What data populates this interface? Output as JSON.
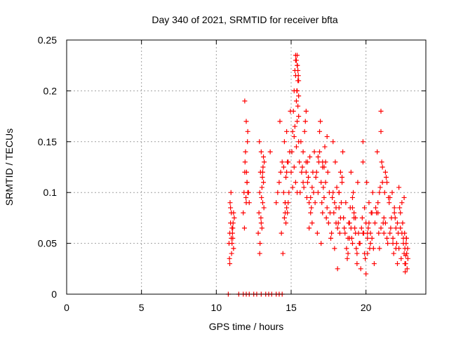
{
  "chart_data": {
    "type": "scatter",
    "title": "Day 340 of 2021, SRMTID for receiver bfta",
    "xlabel": "GPS time / hours",
    "ylabel": "SRMTID / TECUs",
    "xlim": [
      0,
      24
    ],
    "ylim": [
      0,
      0.25
    ],
    "xticks": [
      0,
      5,
      10,
      15,
      20
    ],
    "yticks": [
      0,
      0.05,
      0.1,
      0.15,
      0.2,
      0.25
    ],
    "xtick_labels": [
      "0",
      "5",
      "10",
      "15",
      "20"
    ],
    "ytick_labels": [
      "0",
      "0.05",
      "0.1",
      "0.15",
      "0.2",
      "0.25"
    ],
    "grid": true,
    "marker": "+",
    "color": "#ff0000",
    "series": [
      {
        "name": "SRMTID",
        "x": [
          10.85,
          10.9,
          10.95,
          11.0,
          11.05,
          11.1,
          11.15,
          11.2,
          10.88,
          10.92,
          10.98,
          11.02,
          11.08,
          11.12,
          10.95,
          11.05,
          11.1,
          10.9,
          11.0,
          11.15,
          11.8,
          11.85,
          11.9,
          11.95,
          12.0,
          12.05,
          12.1,
          11.88,
          11.92,
          11.98,
          12.02,
          12.08,
          12.15,
          12.2,
          11.9,
          12.0,
          12.05,
          12.8,
          12.85,
          12.9,
          12.95,
          13.0,
          13.05,
          13.1,
          13.15,
          13.2,
          12.88,
          12.92,
          12.98,
          13.02,
          13.08,
          13.12,
          13.18,
          12.9,
          13.0,
          13.05,
          13.1,
          13.15,
          14.0,
          14.1,
          14.2,
          14.3,
          14.4,
          14.5,
          14.6,
          14.7,
          14.8,
          14.9,
          14.25,
          14.35,
          14.45,
          14.55,
          14.65,
          14.75,
          14.85,
          14.95,
          14.5,
          14.6,
          14.7,
          14.8,
          15.0,
          15.05,
          15.1,
          15.15,
          15.2,
          15.25,
          15.3,
          15.35,
          15.4,
          15.45,
          15.5,
          15.55,
          15.1,
          15.2,
          15.3,
          15.4,
          15.5,
          15.25,
          15.35,
          15.45,
          15.3,
          15.4,
          15.5,
          15.2,
          15.3,
          15.4,
          15.6,
          15.7,
          15.8,
          15.9,
          16.0,
          16.1,
          16.2,
          16.3,
          16.4,
          16.5,
          15.65,
          15.75,
          15.85,
          15.95,
          16.05,
          16.15,
          16.25,
          16.35,
          16.45,
          16.55,
          16.0,
          16.2,
          16.4,
          15.8,
          16.1,
          16.3,
          16.6,
          16.7,
          16.8,
          16.9,
          17.0,
          17.1,
          17.2,
          17.3,
          17.4,
          17.5,
          16.65,
          16.75,
          16.85,
          16.95,
          17.05,
          17.15,
          17.25,
          17.35,
          17.45,
          17.55,
          16.8,
          17.0,
          17.2,
          17.4,
          16.9,
          17.1,
          17.3,
          17.6,
          17.7,
          17.8,
          17.9,
          18.0,
          18.1,
          18.2,
          18.3,
          18.4,
          18.5,
          17.65,
          17.75,
          17.85,
          17.95,
          18.05,
          18.15,
          18.25,
          18.35,
          18.45,
          18.55,
          17.8,
          18.0,
          18.2,
          18.4,
          17.9,
          18.1,
          18.3,
          18.6,
          18.7,
          18.8,
          18.9,
          19.0,
          19.1,
          19.2,
          19.3,
          19.4,
          19.5,
          18.65,
          18.75,
          18.85,
          18.95,
          19.05,
          19.15,
          19.25,
          19.35,
          19.45,
          19.55,
          18.8,
          19.0,
          19.2,
          19.4,
          18.9,
          19.1,
          19.3,
          19.6,
          19.7,
          19.8,
          19.9,
          20.0,
          20.1,
          20.2,
          20.3,
          20.4,
          20.5,
          19.65,
          19.75,
          19.85,
          19.95,
          20.05,
          20.15,
          20.25,
          20.35,
          20.45,
          20.55,
          19.8,
          20.0,
          20.2,
          20.4,
          19.9,
          20.1,
          20.3,
          20.6,
          20.7,
          20.8,
          20.9,
          21.0,
          21.1,
          21.2,
          21.3,
          21.4,
          21.5,
          20.65,
          20.75,
          20.85,
          20.95,
          21.05,
          21.15,
          21.25,
          21.35,
          21.45,
          21.55,
          20.8,
          21.0,
          21.2,
          21.4,
          20.9,
          21.1,
          21.3,
          21.6,
          21.7,
          21.8,
          21.9,
          22.0,
          22.1,
          22.2,
          22.3,
          22.4,
          22.5,
          21.65,
          21.75,
          21.85,
          21.95,
          22.05,
          22.15,
          22.25,
          22.35,
          22.45,
          22.55,
          21.8,
          22.0,
          22.2,
          22.4,
          21.9,
          22.1,
          22.3,
          22.5,
          22.55,
          22.6,
          22.65,
          22.7,
          22.75,
          22.8,
          22.58,
          22.62,
          22.68,
          22.72,
          22.78,
          22.6,
          22.7,
          22.65,
          15.35,
          15.4,
          15.45,
          15.5,
          15.38,
          15.42,
          15.48,
          14.6,
          14.7,
          14.65,
          14.75,
          14.55,
          21.0,
          16.0,
          17.1,
          18.2,
          19.1,
          20.1,
          21.6,
          13.6,
          12.1,
          19.8,
          10.8,
          11.5,
          11.8,
          12.0,
          12.2,
          12.5,
          12.7,
          13.0,
          13.3,
          13.5,
          13.7,
          14.0,
          14.2,
          14.4
        ],
        "y": [
          0.05,
          0.06,
          0.07,
          0.08,
          0.065,
          0.055,
          0.045,
          0.075,
          0.035,
          0.09,
          0.1,
          0.04,
          0.06,
          0.07,
          0.085,
          0.05,
          0.065,
          0.03,
          0.055,
          0.08,
          0.08,
          0.1,
          0.12,
          0.14,
          0.09,
          0.11,
          0.16,
          0.065,
          0.13,
          0.095,
          0.12,
          0.15,
          0.1,
          0.09,
          0.19,
          0.17,
          0.11,
          0.06,
          0.08,
          0.1,
          0.12,
          0.14,
          0.065,
          0.09,
          0.11,
          0.13,
          0.15,
          0.05,
          0.075,
          0.095,
          0.115,
          0.125,
          0.085,
          0.04,
          0.07,
          0.105,
          0.12,
          0.135,
          0.09,
          0.1,
          0.11,
          0.12,
          0.13,
          0.1,
          0.08,
          0.12,
          0.09,
          0.14,
          0.17,
          0.06,
          0.04,
          0.15,
          0.115,
          0.13,
          0.1,
          0.18,
          0.125,
          0.09,
          0.16,
          0.13,
          0.12,
          0.14,
          0.16,
          0.18,
          0.2,
          0.22,
          0.23,
          0.19,
          0.17,
          0.21,
          0.15,
          0.13,
          0.105,
          0.125,
          0.235,
          0.225,
          0.195,
          0.165,
          0.145,
          0.185,
          0.215,
          0.2,
          0.175,
          0.155,
          0.11,
          0.1,
          0.1,
          0.12,
          0.14,
          0.16,
          0.13,
          0.11,
          0.09,
          0.08,
          0.07,
          0.1,
          0.15,
          0.125,
          0.105,
          0.17,
          0.095,
          0.115,
          0.135,
          0.085,
          0.12,
          0.14,
          0.18,
          0.065,
          0.105,
          0.11,
          0.13,
          0.095,
          0.09,
          0.12,
          0.1,
          0.14,
          0.11,
          0.08,
          0.125,
          0.13,
          0.155,
          0.07,
          0.115,
          0.06,
          0.13,
          0.17,
          0.09,
          0.105,
          0.145,
          0.075,
          0.12,
          0.1,
          0.135,
          0.05,
          0.095,
          0.085,
          0.16,
          0.125,
          0.11,
          0.08,
          0.06,
          0.1,
          0.09,
          0.07,
          0.065,
          0.085,
          0.12,
          0.11,
          0.075,
          0.055,
          0.095,
          0.08,
          0.13,
          0.105,
          0.07,
          0.06,
          0.09,
          0.14,
          0.065,
          0.15,
          0.085,
          0.1,
          0.115,
          0.045,
          0.025,
          0.075,
          0.06,
          0.045,
          0.055,
          0.07,
          0.065,
          0.05,
          0.08,
          0.075,
          0.04,
          0.06,
          0.09,
          0.035,
          0.07,
          0.085,
          0.055,
          0.1,
          0.065,
          0.045,
          0.11,
          0.05,
          0.04,
          0.12,
          0.075,
          0.03,
          0.055,
          0.095,
          0.06,
          0.05,
          0.065,
          0.06,
          0.04,
          0.07,
          0.055,
          0.09,
          0.05,
          0.08,
          0.045,
          0.025,
          0.075,
          0.06,
          0.035,
          0.11,
          0.065,
          0.045,
          0.08,
          0.1,
          0.03,
          0.15,
          0.02,
          0.07,
          0.055,
          0.085,
          0.04,
          0.06,
          0.07,
          0.08,
          0.09,
          0.1,
          0.065,
          0.11,
          0.075,
          0.12,
          0.055,
          0.095,
          0.085,
          0.14,
          0.06,
          0.105,
          0.13,
          0.07,
          0.1,
          0.115,
          0.05,
          0.09,
          0.08,
          0.16,
          0.06,
          0.11,
          0.045,
          0.125,
          0.07,
          0.06,
          0.075,
          0.05,
          0.085,
          0.065,
          0.07,
          0.045,
          0.08,
          0.09,
          0.055,
          0.065,
          0.1,
          0.04,
          0.075,
          0.05,
          0.06,
          0.085,
          0.035,
          0.07,
          0.095,
          0.055,
          0.045,
          0.105,
          0.06,
          0.08,
          0.03,
          0.065,
          0.05,
          0.04,
          0.045,
          0.03,
          0.055,
          0.025,
          0.035,
          0.06,
          0.022,
          0.05,
          0.04,
          0.045,
          0.03,
          0.055,
          0.038,
          0.23,
          0.235,
          0.22,
          0.21,
          0.2,
          0.225,
          0.215,
          0.09,
          0.085,
          0.07,
          0.08,
          0.075,
          0.18,
          0.12,
          0.13,
          0.1,
          0.085,
          0.06,
          0.095,
          0.14,
          0.1,
          0.13,
          0.0,
          0.0,
          0.0,
          0.0,
          0.0,
          0.0,
          0.0,
          0.0,
          0.0,
          0.0,
          0.0,
          0.0,
          0.0,
          0.0
        ]
      }
    ]
  }
}
